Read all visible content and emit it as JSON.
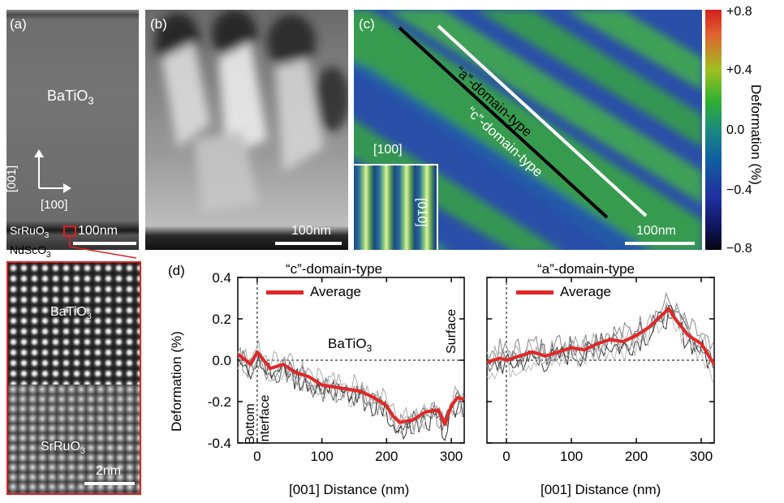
{
  "panel_a": {
    "label": "(a)",
    "material": "BaTiO",
    "material_sub": "3",
    "axis_up": "[001]",
    "axis_right": "[100]",
    "layer1": "SrRuO",
    "layer1_sub": "3",
    "layer2": "NdScO",
    "layer2_sub": "3",
    "scale": "100nm"
  },
  "panel_a_inset": {
    "top_material": "BaTiO",
    "top_sub": "3",
    "bottom_material": "SrRuO",
    "bottom_sub": "3",
    "scale": "2nm"
  },
  "panel_b": {
    "label": "(b)",
    "scale": "100nm"
  },
  "panel_c": {
    "label": "(c)",
    "c_line_label": "“c”-domain-type",
    "a_line_label": "“a”-domain-type",
    "inset_top": "[100]",
    "inset_side": "[010]",
    "scale": "100nm"
  },
  "colorbar": {
    "title": "Deformation (%)",
    "ticks": [
      "+0.8",
      "+0.4",
      "0.0",
      "−0.4",
      "−0.8"
    ],
    "colors": [
      "#d42020",
      "#e8a020",
      "#30b030",
      "#1060a0",
      "#2030a0",
      "#101020"
    ]
  },
  "panel_d": {
    "label": "(d)",
    "left_title": "“c”-domain-type",
    "right_title": "“a”-domain-type",
    "legend": "Average",
    "ylabel": "Deformation (%)",
    "xlabel": "[001] Distance (nm)",
    "annotation_material": "BaTiO",
    "annotation_sub": "3",
    "annotation_bottom": "Bottom",
    "annotation_interface": "interface",
    "annotation_surface": "Surface",
    "yticks": [
      "0.4",
      "0.2",
      "0.0",
      "-0.2",
      "-0.4"
    ],
    "xticks": [
      "0",
      "100",
      "200",
      "300"
    ]
  },
  "chart_data": [
    {
      "type": "line",
      "title": "“c”-domain-type",
      "xlabel": "[001] Distance (nm)",
      "ylabel": "Deformation (%)",
      "xlim": [
        -30,
        320
      ],
      "ylim": [
        -0.4,
        0.4
      ],
      "series": [
        {
          "name": "Average",
          "x": [
            -30,
            -10,
            0,
            10,
            20,
            40,
            60,
            80,
            100,
            120,
            140,
            160,
            180,
            200,
            210,
            220,
            240,
            260,
            280,
            290,
            300,
            310,
            320
          ],
          "y": [
            0.03,
            -0.02,
            0.04,
            0.0,
            -0.04,
            -0.02,
            -0.06,
            -0.08,
            -0.12,
            -0.13,
            -0.14,
            -0.15,
            -0.18,
            -0.22,
            -0.27,
            -0.3,
            -0.29,
            -0.25,
            -0.24,
            -0.31,
            -0.22,
            -0.18,
            -0.19
          ]
        }
      ]
    },
    {
      "type": "line",
      "title": "“a”-domain-type",
      "xlabel": "[001] Distance (nm)",
      "xlim": [
        -30,
        320
      ],
      "ylim": [
        -0.4,
        0.4
      ],
      "series": [
        {
          "name": "Average",
          "x": [
            -30,
            -10,
            0,
            20,
            40,
            60,
            80,
            100,
            120,
            140,
            160,
            180,
            200,
            220,
            240,
            250,
            260,
            280,
            300,
            320
          ],
          "y": [
            -0.01,
            0.01,
            0.0,
            0.02,
            0.04,
            0.02,
            0.04,
            0.06,
            0.05,
            0.08,
            0.1,
            0.09,
            0.12,
            0.16,
            0.22,
            0.25,
            0.2,
            0.12,
            0.08,
            -0.02
          ]
        }
      ]
    }
  ]
}
